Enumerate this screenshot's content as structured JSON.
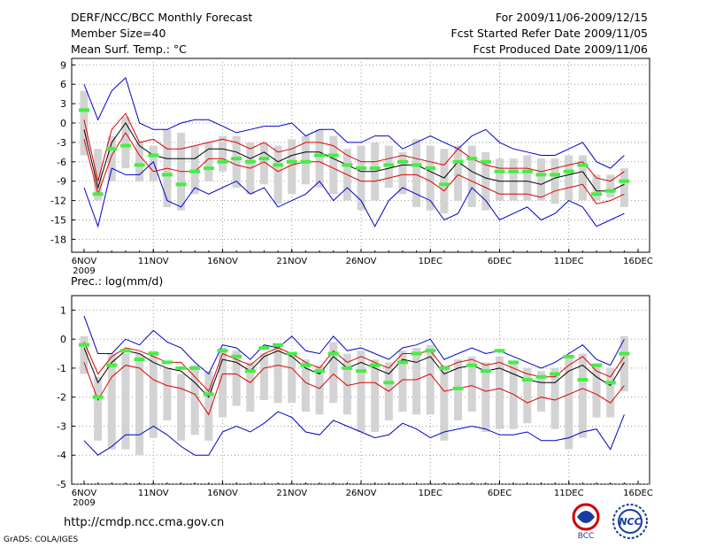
{
  "header": {
    "title": "DERF/NCC/BCC Monthly Forecast",
    "member_size": "Member Size=40",
    "variable1": "Mean Surf. Temp.: °C",
    "period": "For 2009/11/06-2009/12/15",
    "fcst_started": "Fcst Started Refer Date 2009/11/05",
    "fcst_produced": "Fcst Produced Date 2009/11/06"
  },
  "footer": {
    "url": "http://cmdp.ncc.cma.gov.cn",
    "grads": "GrADS: COLA/IGES",
    "logo1_text": "BCC",
    "logo2_text": "NCC"
  },
  "chart_data": [
    {
      "type": "box-ensemble",
      "title": "Mean Surf. Temp.: °C",
      "x_tick_labels": [
        "6NOV",
        "11NOV",
        "16NOV",
        "21NOV",
        "26NOV",
        "1DEC",
        "6DEC",
        "11DEC",
        "16DEC"
      ],
      "x_tick_days": [
        0,
        5,
        10,
        15,
        20,
        25,
        30,
        35,
        40
      ],
      "x_year_label": "2009",
      "ylim": [
        -20,
        10
      ],
      "y_ticks": [
        9,
        6,
        3,
        0,
        -3,
        -6,
        -9,
        -12,
        -15,
        -18
      ],
      "days": [
        0,
        1,
        2,
        3,
        4,
        5,
        6,
        7,
        8,
        9,
        10,
        11,
        12,
        13,
        14,
        15,
        16,
        17,
        18,
        19,
        20,
        21,
        22,
        23,
        24,
        25,
        26,
        27,
        28,
        29,
        30,
        31,
        32,
        33,
        34,
        35,
        36,
        37,
        38,
        39
      ],
      "series": [
        {
          "name": "max",
          "color": "#0000cc",
          "values": [
            -10,
            -16,
            -7,
            -8,
            -8,
            -6,
            -12,
            -13,
            -10,
            -11,
            -10,
            -9,
            -11,
            -10,
            -13,
            -12,
            -11,
            -9,
            -12,
            -10,
            -12,
            -16,
            -12,
            -10,
            -11,
            -12,
            -15,
            -14,
            -10,
            -12,
            -15,
            -14,
            -13,
            -15,
            -14,
            -12,
            -13,
            -16,
            -15,
            -14
          ]
        },
        {
          "name": "min",
          "color": "#0000cc",
          "values": [
            6,
            0.5,
            5,
            7,
            0,
            -1,
            -1,
            0,
            0.5,
            0.5,
            -0.5,
            -1.5,
            -1,
            -0.5,
            -0.5,
            0,
            -2,
            -1,
            -1,
            -3,
            -3,
            -2,
            -2,
            -4,
            -3,
            -2,
            -3,
            -4,
            -2,
            -1,
            -3,
            -4,
            -4.5,
            -5,
            -5,
            -4,
            -3,
            -6,
            -7,
            -5
          ]
        },
        {
          "name": "upper_sd",
          "color": "#dd0000",
          "values": [
            0.5,
            -9,
            -1,
            1.5,
            -3,
            -2.5,
            -4,
            -4,
            -3.5,
            -3,
            -2.5,
            -3,
            -4,
            -3,
            -4.5,
            -4,
            -3,
            -3,
            -3.5,
            -5,
            -6,
            -6,
            -5.5,
            -5,
            -5.5,
            -6,
            -6.5,
            -4,
            -5.5,
            -6.5,
            -7,
            -7,
            -7,
            -7.5,
            -7,
            -6.5,
            -6,
            -8.5,
            -9,
            -7.5
          ]
        },
        {
          "name": "mean",
          "color": "#000000",
          "values": [
            -1,
            -10,
            -3,
            0,
            -3.5,
            -5,
            -5.5,
            -5.5,
            -5.5,
            -4,
            -4,
            -4.5,
            -5.5,
            -4.5,
            -6,
            -5,
            -4.5,
            -4.5,
            -5.5,
            -6.5,
            -7.5,
            -7.5,
            -7,
            -6.5,
            -6.5,
            -7.5,
            -8.5,
            -6,
            -7.5,
            -8.5,
            -9,
            -9,
            -9,
            -9.5,
            -8.5,
            -8,
            -7.5,
            -10.5,
            -10.5,
            -9.5
          ]
        },
        {
          "name": "lower_sd",
          "color": "#dd0000",
          "values": [
            -2.5,
            -11,
            -5,
            -1.5,
            -5,
            -7.5,
            -7,
            -7.5,
            -7.5,
            -5.5,
            -5.5,
            -6.5,
            -7,
            -6,
            -7.5,
            -6.5,
            -6,
            -6,
            -7,
            -8,
            -9,
            -9,
            -8.5,
            -8,
            -8,
            -9,
            -10.5,
            -8,
            -9,
            -10,
            -11,
            -11,
            -11,
            -11.5,
            -10.5,
            -10,
            -9.5,
            -12.5,
            -12,
            -11
          ]
        },
        {
          "name": "box_top",
          "color": "#d3d3d3",
          "values": [
            5,
            -4,
            -2,
            1,
            -3,
            -3.5,
            -1,
            -1.5,
            -3.5,
            -3,
            -2,
            -2,
            -3,
            -3,
            -3.5,
            -2.5,
            -2,
            -1,
            -2,
            -4,
            -3.5,
            -3,
            -3.5,
            -4.5,
            -2.5,
            -3.5,
            -4,
            -3.5,
            -3.5,
            -4.5,
            -5.5,
            -5.5,
            -5,
            -5.5,
            -5.5,
            -5,
            -5,
            -8,
            -8,
            -7
          ]
        },
        {
          "name": "box_bottom",
          "color": "#d3d3d3",
          "values": [
            -5,
            -12,
            -9,
            -7,
            -9,
            -9,
            -13,
            -13.5,
            -11,
            -9,
            -7.5,
            -10,
            -11,
            -9.5,
            -12.5,
            -11,
            -9.5,
            -10,
            -11,
            -12,
            -13.5,
            -12,
            -10,
            -11,
            -13,
            -13.5,
            -14,
            -12,
            -13,
            -13.5,
            -12,
            -12,
            -12,
            -12,
            -12.5,
            -12,
            -12,
            -12,
            -11.5,
            -13
          ]
        },
        {
          "name": "green_marker",
          "color": "#44ee44",
          "values": [
            2,
            -11,
            -4,
            -3.5,
            -6.5,
            -5,
            -8,
            -9.5,
            -7.5,
            -7,
            -6,
            -5.5,
            -6,
            -5.5,
            -6.5,
            -6,
            -6,
            -5,
            -5,
            -6.5,
            -7,
            -7,
            -6.5,
            -6,
            -6.5,
            -7,
            -9.5,
            -6,
            -5.5,
            -6,
            -7.5,
            -7.5,
            -7.5,
            -8,
            -8,
            -7.5,
            -6.5,
            -11,
            -10.5,
            -9
          ]
        }
      ]
    },
    {
      "type": "box-ensemble",
      "title": "Prec.: log(mm/d)",
      "x_tick_labels": [
        "6NOV",
        "11NOV",
        "16NOV",
        "21NOV",
        "26NOV",
        "1DEC",
        "6DEC",
        "11DEC",
        "16DEC"
      ],
      "x_tick_days": [
        0,
        5,
        10,
        15,
        20,
        25,
        30,
        35,
        40
      ],
      "x_year_label": "2009",
      "ylim": [
        -5,
        1.5
      ],
      "y_ticks": [
        1,
        0,
        -1,
        -2,
        -3,
        -4,
        -5
      ],
      "days": [
        0,
        1,
        2,
        3,
        4,
        5,
        6,
        7,
        8,
        9,
        10,
        11,
        12,
        13,
        14,
        15,
        16,
        17,
        18,
        19,
        20,
        21,
        22,
        23,
        24,
        25,
        26,
        27,
        28,
        29,
        30,
        31,
        32,
        33,
        34,
        35,
        36,
        37,
        38,
        39
      ],
      "series": [
        {
          "name": "max",
          "color": "#0000cc",
          "values": [
            0.8,
            -0.5,
            -0.5,
            0,
            -0.2,
            0.3,
            -0.1,
            -0.3,
            -0.8,
            -1.2,
            -0.2,
            -0.3,
            -0.7,
            -0.2,
            -0.3,
            0.1,
            -0.4,
            -0.5,
            0.1,
            -0.4,
            -0.3,
            -0.5,
            -0.7,
            -0.3,
            -0.2,
            0,
            -0.7,
            -0.5,
            -0.3,
            -0.5,
            -0.4,
            -0.6,
            -0.8,
            -1,
            -0.8,
            -0.5,
            -0.2,
            -0.7,
            -0.9,
            0
          ]
        },
        {
          "name": "min",
          "color": "#0000cc",
          "values": [
            -3.5,
            -4,
            -3.7,
            -3.3,
            -3.3,
            -3,
            -3.3,
            -3.7,
            -4,
            -4,
            -3.2,
            -3,
            -3.2,
            -2.9,
            -2.5,
            -2.7,
            -3.2,
            -3.3,
            -2.8,
            -3,
            -3.2,
            -3.4,
            -3.3,
            -2.9,
            -3.1,
            -3.4,
            -3.2,
            -3.1,
            -3,
            -3.1,
            -3.3,
            -3.3,
            -3.2,
            -3.5,
            -3.5,
            -3.4,
            -3.2,
            -3.1,
            -3.8,
            -2.6
          ]
        },
        {
          "name": "upper_sd",
          "color": "#dd0000",
          "values": [
            -0.1,
            -1.2,
            -0.6,
            -0.3,
            -0.4,
            -0.6,
            -0.8,
            -0.8,
            -1.3,
            -1.8,
            -0.5,
            -0.7,
            -0.9,
            -0.5,
            -0.3,
            -0.5,
            -0.8,
            -1,
            -0.4,
            -0.8,
            -0.6,
            -0.8,
            -1,
            -0.5,
            -0.5,
            -0.4,
            -1,
            -0.8,
            -0.7,
            -0.9,
            -0.8,
            -1,
            -1.2,
            -1.3,
            -1.3,
            -0.9,
            -0.6,
            -1.1,
            -1.3,
            -0.6
          ]
        },
        {
          "name": "mean",
          "color": "#000000",
          "values": [
            -0.3,
            -1.5,
            -0.8,
            -0.4,
            -0.5,
            -0.8,
            -1,
            -1.1,
            -1.5,
            -2,
            -0.7,
            -0.8,
            -1.1,
            -0.6,
            -0.4,
            -0.6,
            -1,
            -1.2,
            -0.6,
            -1,
            -0.8,
            -1,
            -1.2,
            -0.7,
            -0.8,
            -0.6,
            -1.2,
            -1,
            -0.9,
            -1.1,
            -1,
            -1.2,
            -1.4,
            -1.5,
            -1.5,
            -1.1,
            -0.9,
            -1.3,
            -1.6,
            -0.8
          ]
        },
        {
          "name": "lower_sd",
          "color": "#dd0000",
          "values": [
            -0.8,
            -2.1,
            -1.3,
            -0.9,
            -1,
            -1.4,
            -1.6,
            -1.7,
            -1.9,
            -2.6,
            -1.2,
            -1.2,
            -1.5,
            -1,
            -0.9,
            -1,
            -1.5,
            -1.7,
            -1.2,
            -1.6,
            -1.5,
            -1.5,
            -1.8,
            -1.4,
            -1.4,
            -1.2,
            -1.8,
            -1.7,
            -1.6,
            -1.8,
            -1.7,
            -1.9,
            -2.2,
            -2,
            -2.1,
            -1.9,
            -1.7,
            -1.9,
            -2.2,
            -1.6
          ]
        },
        {
          "name": "box_top",
          "color": "#d3d3d3",
          "values": [
            0.1,
            -1.3,
            -0.5,
            -0.5,
            -0.5,
            -0.4,
            -1,
            -1.2,
            -0.9,
            -1.1,
            -0.3,
            -0.4,
            -0.8,
            -0.5,
            -0.2,
            -0.5,
            -0.7,
            -0.9,
            -0.1,
            -0.5,
            -0.4,
            -0.7,
            -0.8,
            -0.4,
            -0.3,
            -0.2,
            -0.9,
            -0.7,
            -0.6,
            -0.8,
            -0.6,
            -0.8,
            -1,
            -1.1,
            -1,
            -0.6,
            -0.5,
            -0.9,
            -1,
            0.1
          ]
        },
        {
          "name": "box_bottom",
          "color": "#d3d3d3",
          "values": [
            -1.2,
            -3.5,
            -3.8,
            -3.8,
            -4,
            -3.4,
            -2.8,
            -3.5,
            -3.3,
            -3.5,
            -2.7,
            -2.3,
            -2.5,
            -2.1,
            -2.2,
            -2.2,
            -2.5,
            -2.6,
            -2.2,
            -2.6,
            -3.2,
            -3.2,
            -2.8,
            -2.5,
            -2.6,
            -2.6,
            -3.5,
            -2.8,
            -2.5,
            -3.2,
            -3.1,
            -3.1,
            -2.9,
            -2.5,
            -3.1,
            -3.8,
            -3.4,
            -2.7,
            -2.7,
            -1.8
          ]
        },
        {
          "name": "green_marker",
          "color": "#44ee44",
          "values": [
            -0.2,
            -2,
            -0.9,
            -0.4,
            -0.7,
            -0.5,
            -0.8,
            -1,
            -1,
            -1.9,
            -0.4,
            -0.6,
            -1.1,
            -0.3,
            -0.2,
            -0.5,
            -0.9,
            -1.1,
            -0.5,
            -1,
            -1.1,
            -0.9,
            -1.5,
            -0.8,
            -0.5,
            -0.4,
            -1,
            -1.7,
            -0.9,
            -1.1,
            -0.4,
            -0.8,
            -1.4,
            -1.3,
            -1.2,
            -0.6,
            -1.4,
            -0.9,
            -1.5,
            -0.5
          ]
        }
      ]
    }
  ]
}
